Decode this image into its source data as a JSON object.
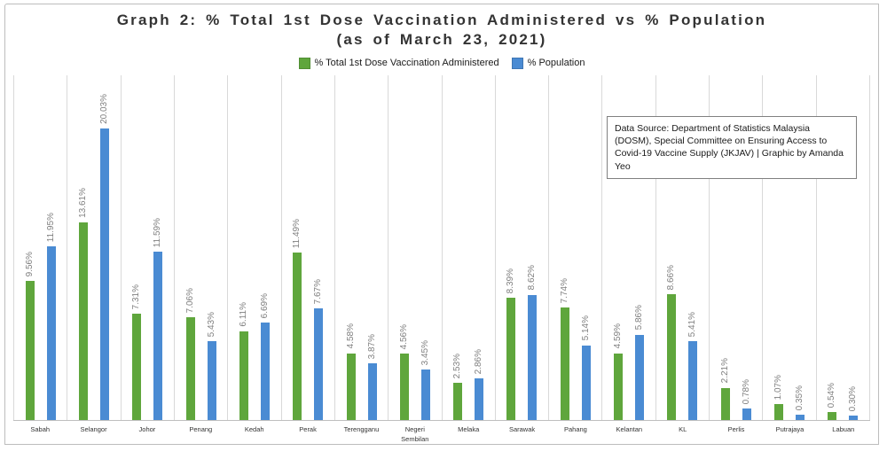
{
  "title_line1": "Graph 2: % Total 1st Dose Vaccination Administered vs % Population",
  "title_line2": "(as of March 23, 2021)",
  "source_note": "Data Source: Department of Statistics Malaysia (DOSM), Special Committee on Ensuring Access to Covid-19 Vaccine Supply (JKJAV) | Graphic by Amanda Yeo",
  "colors": {
    "series_green": "#5fa63c",
    "series_blue": "#4a8bd3",
    "value_label": "#7f7f7f",
    "gridline": "#d9d9d9"
  },
  "chart_data": {
    "type": "bar",
    "title": "Graph 2: % Total 1st Dose Vaccination Administered vs % Population (as of March 23, 2021)",
    "categories": [
      "Sabah",
      "Selangor",
      "Johor",
      "Penang",
      "Kedah",
      "Perak",
      "Terengganu",
      "Negeri Sembilan",
      "Melaka",
      "Sarawak",
      "Pahang",
      "Kelantan",
      "KL",
      "Perlis",
      "Putrajaya",
      "Labuan"
    ],
    "series": [
      {
        "name": "% Total 1st Dose Vaccination Administered",
        "color": "#5fa63c",
        "values": [
          9.56,
          13.61,
          7.31,
          7.06,
          6.11,
          11.49,
          4.58,
          4.56,
          2.53,
          8.39,
          7.74,
          4.59,
          8.66,
          2.21,
          1.07,
          0.54
        ]
      },
      {
        "name": "% Population",
        "color": "#4a8bd3",
        "values": [
          11.95,
          20.03,
          11.59,
          5.43,
          6.69,
          7.67,
          3.87,
          3.45,
          2.86,
          8.62,
          5.14,
          5.86,
          5.41,
          0.78,
          0.35,
          0.3
        ]
      }
    ],
    "value_suffix": "%",
    "value_decimals": 2,
    "xlabel": "",
    "ylabel": "",
    "ylim": [
      0,
      23.7
    ],
    "grid": "vertical category dividers",
    "legend_position": "top-center",
    "bar_value_labels": "rotated 90deg above bars"
  }
}
